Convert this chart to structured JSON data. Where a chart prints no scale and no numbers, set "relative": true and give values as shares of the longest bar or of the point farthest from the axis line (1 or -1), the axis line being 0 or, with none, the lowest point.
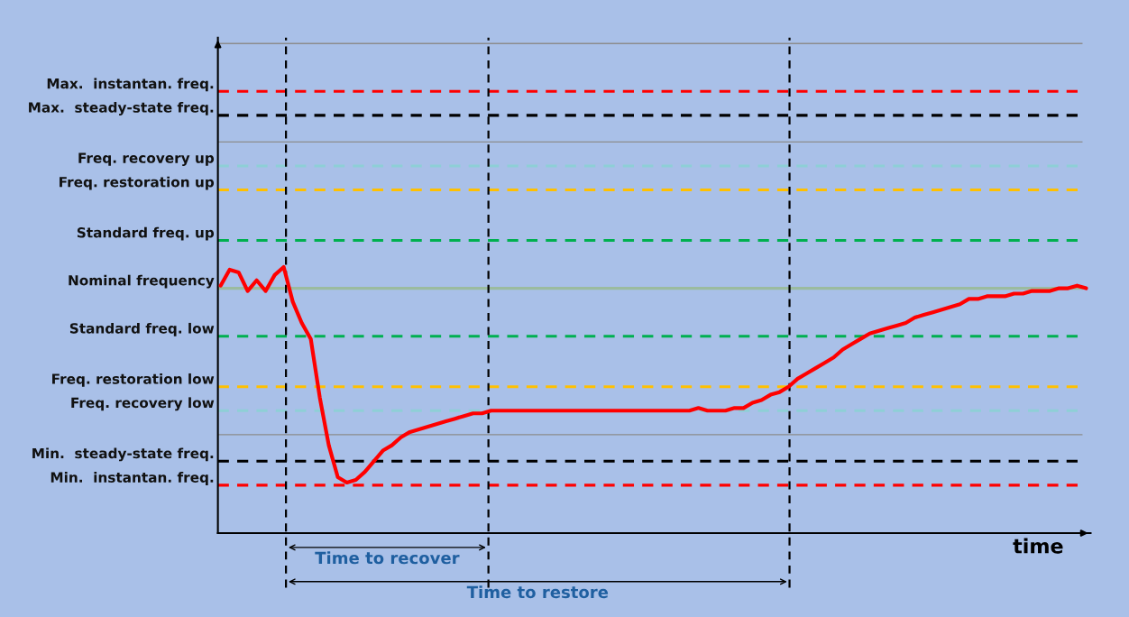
{
  "chart_data": {
    "type": "line",
    "relative": true,
    "xlabel": "time",
    "categories": [
      null,
      null,
      null,
      null,
      null,
      null,
      null,
      null,
      null,
      null,
      null,
      null,
      null,
      null,
      null,
      null,
      null,
      null,
      null,
      null,
      null,
      null,
      null,
      null,
      null,
      null,
      null,
      null,
      null,
      null,
      null,
      null,
      null,
      null,
      null,
      null,
      null,
      null,
      null,
      null,
      null,
      null,
      null,
      null,
      null,
      null,
      null,
      null,
      null,
      null,
      null,
      null,
      null,
      null,
      null,
      null,
      null,
      null,
      null,
      null,
      null,
      null,
      null,
      null,
      null,
      null,
      null,
      null,
      null,
      null,
      null,
      null,
      null,
      null,
      null,
      null,
      null,
      null,
      null,
      null,
      null,
      null,
      null,
      null,
      null,
      null,
      null,
      null,
      null,
      null,
      null,
      null,
      null,
      null,
      null,
      null,
      null
    ],
    "series": [
      {
        "color": "#ff0000",
        "values": [
          0.93,
          0.99,
          0.98,
          0.91,
          0.95,
          0.91,
          0.97,
          1.0,
          0.87,
          0.79,
          0.73,
          0.51,
          0.33,
          0.21,
          0.19,
          0.2,
          0.23,
          0.27,
          0.31,
          0.33,
          0.36,
          0.38,
          0.39,
          0.4,
          0.41,
          0.42,
          0.43,
          0.44,
          0.45,
          0.45,
          0.46,
          0.46,
          0.46,
          0.46,
          0.46,
          0.46,
          0.46,
          0.46,
          0.46,
          0.46,
          0.46,
          0.46,
          0.46,
          0.46,
          0.46,
          0.46,
          0.46,
          0.46,
          0.46,
          0.46,
          0.46,
          0.46,
          0.46,
          0.47,
          0.46,
          0.46,
          0.46,
          0.47,
          0.47,
          0.49,
          0.5,
          0.52,
          0.53,
          0.55,
          0.58,
          0.6,
          0.62,
          0.64,
          0.66,
          0.69,
          0.71,
          0.73,
          0.75,
          0.76,
          0.77,
          0.78,
          0.79,
          0.81,
          0.82,
          0.83,
          0.84,
          0.85,
          0.86,
          0.88,
          0.88,
          0.89,
          0.89,
          0.89,
          0.9,
          0.9,
          0.91,
          0.91,
          0.91,
          0.92,
          0.92,
          0.93,
          0.92
        ]
      }
    ],
    "ref_lines": [
      {
        "axis": "y",
        "value": 1.84,
        "label": null,
        "color": "#8c8c8c",
        "line_style": "solid"
      },
      {
        "axis": "y",
        "value": 1.66,
        "label": "Max.  instantan. freq.",
        "color": "#ff0000",
        "line_style": "dashed"
      },
      {
        "axis": "y",
        "value": 1.57,
        "label": "Max.  steady-state freq.",
        "color": "#000000",
        "line_style": "dashed"
      },
      {
        "axis": "y",
        "value": 1.47,
        "label": null,
        "color": "#8c8c8c",
        "line_style": "solid"
      },
      {
        "axis": "y",
        "value": 1.38,
        "label": "Freq. recovery up",
        "color": "#8ecfd6",
        "line_style": "dashed"
      },
      {
        "axis": "y",
        "value": 1.29,
        "label": "Freq. restoration up",
        "color": "#ffc000",
        "line_style": "dashed"
      },
      {
        "axis": "y",
        "value": 1.1,
        "label": "Standard freq. up",
        "color": "#00b050",
        "line_style": "dashed"
      },
      {
        "axis": "y",
        "value": 0.92,
        "label": "Nominal frequency",
        "color": "#9bbb9f",
        "line_style": "solid"
      },
      {
        "axis": "y",
        "value": 0.74,
        "label": "Standard freq. low",
        "color": "#00b050",
        "line_style": "dashed"
      },
      {
        "axis": "y",
        "value": 0.55,
        "label": "Freq. restoration low",
        "color": "#ffc000",
        "line_style": "dashed"
      },
      {
        "axis": "y",
        "value": 0.46,
        "label": "Freq. recovery low",
        "color": "#8ecfd6",
        "line_style": "dashed"
      },
      {
        "axis": "y",
        "value": 0.37,
        "label": null,
        "color": "#8c8c8c",
        "line_style": "solid"
      },
      {
        "axis": "y",
        "value": 0.27,
        "label": "Min.  steady-state freq.",
        "color": "#000000",
        "line_style": "dashed"
      },
      {
        "axis": "y",
        "value": 0.18,
        "label": "Min.  instantan. freq.",
        "color": "#ff0000",
        "line_style": "dashed"
      }
    ],
    "annotations": [
      "Time to recover",
      "Time to restore"
    ]
  }
}
